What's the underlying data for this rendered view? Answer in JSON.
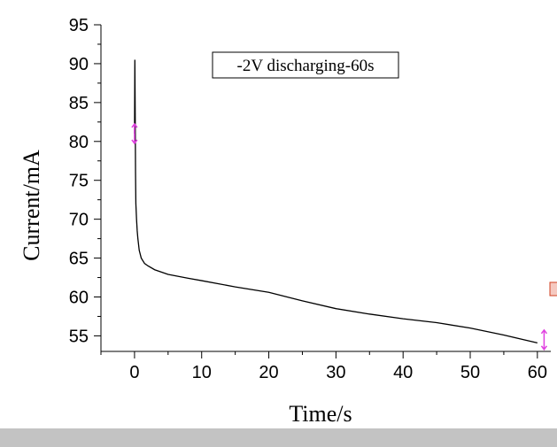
{
  "chart_data": {
    "type": "line",
    "title": "",
    "xlabel": "Time/s",
    "ylabel": "Current/mA",
    "xlim": [
      -5,
      62
    ],
    "ylim": [
      53,
      95
    ],
    "xticks": [
      0,
      10,
      20,
      30,
      40,
      50,
      60
    ],
    "yticks": [
      55,
      60,
      65,
      70,
      75,
      80,
      85,
      90,
      95
    ],
    "grid": false,
    "annotation": "-2V discharging-60s",
    "series": [
      {
        "name": "",
        "color": "#000000",
        "x": [
          0,
          0.05,
          0.1,
          0.15,
          0.2,
          0.3,
          0.4,
          0.5,
          0.7,
          1,
          1.5,
          2,
          3,
          5,
          8,
          10,
          15,
          20,
          25,
          30,
          35,
          40,
          45,
          50,
          55,
          60
        ],
        "y": [
          81,
          90.5,
          84,
          76,
          72,
          70,
          68.5,
          67.5,
          66,
          65,
          64.3,
          64,
          63.5,
          62.9,
          62.4,
          62.1,
          61.3,
          60.6,
          59.5,
          58.5,
          57.8,
          57.2,
          56.7,
          56,
          55.1,
          54.1
        ]
      }
    ],
    "endpoint_markers": {
      "color": "#e040e0",
      "points": [
        {
          "x": 0,
          "y": 81
        },
        {
          "x": 61,
          "y": 54.5
        }
      ]
    }
  }
}
